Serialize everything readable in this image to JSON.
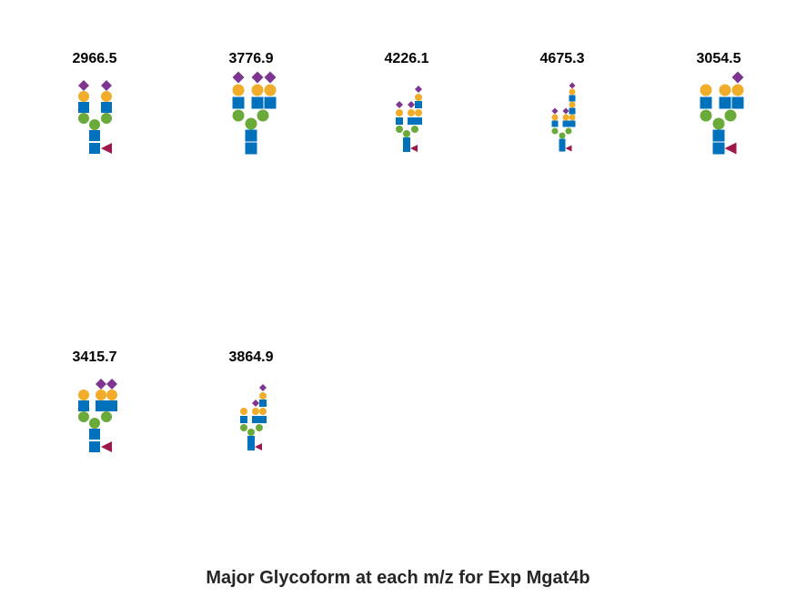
{
  "figure": {
    "caption": "Major Glycoform at each m/z for Exp Mgat4b"
  },
  "legend_colors": {
    "GlcNAc": "#0071bc",
    "Mannose": "#6aaa3a",
    "Galactose": "#f1ad29",
    "NeuAc": "#7e3592",
    "Fucose": "#a0174b"
  },
  "panels": [
    {
      "mz": "2966.5",
      "residues": [
        {
          "type": "square",
          "residue": "GlcNAc"
        },
        {
          "type": "square",
          "residue": "GlcNAc"
        },
        {
          "type": "triangle",
          "residue": "Fucose"
        },
        {
          "type": "circle",
          "residue": "Mannose"
        },
        {
          "type": "circle",
          "residue": "Mannose"
        },
        {
          "type": "circle",
          "residue": "Mannose"
        },
        {
          "type": "square",
          "residue": "GlcNAc"
        },
        {
          "type": "square",
          "residue": "GlcNAc"
        },
        {
          "type": "circle",
          "residue": "Galactose"
        },
        {
          "type": "circle",
          "residue": "Galactose"
        },
        {
          "type": "diamond",
          "residue": "NeuAc"
        },
        {
          "type": "diamond",
          "residue": "NeuAc"
        }
      ]
    },
    {
      "mz": "3776.9",
      "residues": [
        {
          "type": "square",
          "residue": "GlcNAc"
        },
        {
          "type": "square",
          "residue": "GlcNAc"
        },
        {
          "type": "circle",
          "residue": "Mannose"
        },
        {
          "type": "circle",
          "residue": "Mannose"
        },
        {
          "type": "circle",
          "residue": "Mannose"
        },
        {
          "type": "square",
          "residue": "GlcNAc"
        },
        {
          "type": "square",
          "residue": "GlcNAc"
        },
        {
          "type": "square",
          "residue": "GlcNAc"
        },
        {
          "type": "circle",
          "residue": "Galactose"
        },
        {
          "type": "circle",
          "residue": "Galactose"
        },
        {
          "type": "circle",
          "residue": "Galactose"
        },
        {
          "type": "diamond",
          "residue": "NeuAc"
        },
        {
          "type": "diamond",
          "residue": "NeuAc"
        },
        {
          "type": "diamond",
          "residue": "NeuAc"
        }
      ]
    },
    {
      "mz": "4226.1",
      "residues": [
        {
          "type": "square",
          "residue": "GlcNAc"
        },
        {
          "type": "square",
          "residue": "GlcNAc"
        },
        {
          "type": "triangle",
          "residue": "Fucose"
        },
        {
          "type": "circle",
          "residue": "Mannose"
        },
        {
          "type": "circle",
          "residue": "Mannose"
        },
        {
          "type": "circle",
          "residue": "Mannose"
        },
        {
          "type": "square",
          "residue": "GlcNAc"
        },
        {
          "type": "square",
          "residue": "GlcNAc"
        },
        {
          "type": "square",
          "residue": "GlcNAc"
        },
        {
          "type": "circle",
          "residue": "Galactose"
        },
        {
          "type": "circle",
          "residue": "Galactose"
        },
        {
          "type": "circle",
          "residue": "Galactose"
        },
        {
          "type": "square",
          "residue": "GlcNAc"
        },
        {
          "type": "circle",
          "residue": "Galactose"
        },
        {
          "type": "diamond",
          "residue": "NeuAc"
        },
        {
          "type": "diamond",
          "residue": "NeuAc"
        },
        {
          "type": "diamond",
          "residue": "NeuAc"
        }
      ]
    },
    {
      "mz": "4675.3",
      "residues": [
        {
          "type": "square",
          "residue": "GlcNAc"
        },
        {
          "type": "square",
          "residue": "GlcNAc"
        },
        {
          "type": "triangle",
          "residue": "Fucose"
        },
        {
          "type": "circle",
          "residue": "Mannose"
        },
        {
          "type": "circle",
          "residue": "Mannose"
        },
        {
          "type": "circle",
          "residue": "Mannose"
        },
        {
          "type": "square",
          "residue": "GlcNAc"
        },
        {
          "type": "square",
          "residue": "GlcNAc"
        },
        {
          "type": "square",
          "residue": "GlcNAc"
        },
        {
          "type": "circle",
          "residue": "Galactose"
        },
        {
          "type": "circle",
          "residue": "Galactose"
        },
        {
          "type": "circle",
          "residue": "Galactose"
        },
        {
          "type": "square",
          "residue": "GlcNAc"
        },
        {
          "type": "circle",
          "residue": "Galactose"
        },
        {
          "type": "square",
          "residue": "GlcNAc"
        },
        {
          "type": "circle",
          "residue": "Galactose"
        },
        {
          "type": "diamond",
          "residue": "NeuAc"
        },
        {
          "type": "diamond",
          "residue": "NeuAc"
        },
        {
          "type": "diamond",
          "residue": "NeuAc"
        }
      ]
    },
    {
      "mz": "3054.5",
      "residues": [
        {
          "type": "square",
          "residue": "GlcNAc"
        },
        {
          "type": "square",
          "residue": "GlcNAc"
        },
        {
          "type": "triangle",
          "residue": "Fucose"
        },
        {
          "type": "circle",
          "residue": "Mannose"
        },
        {
          "type": "circle",
          "residue": "Mannose"
        },
        {
          "type": "circle",
          "residue": "Mannose"
        },
        {
          "type": "square",
          "residue": "GlcNAc"
        },
        {
          "type": "square",
          "residue": "GlcNAc"
        },
        {
          "type": "square",
          "residue": "GlcNAc"
        },
        {
          "type": "circle",
          "residue": "Galactose"
        },
        {
          "type": "circle",
          "residue": "Galactose"
        },
        {
          "type": "circle",
          "residue": "Galactose"
        },
        {
          "type": "diamond",
          "residue": "NeuAc"
        }
      ]
    },
    {
      "mz": "3415.7",
      "residues": [
        {
          "type": "square",
          "residue": "GlcNAc"
        },
        {
          "type": "square",
          "residue": "GlcNAc"
        },
        {
          "type": "triangle",
          "residue": "Fucose"
        },
        {
          "type": "circle",
          "residue": "Mannose"
        },
        {
          "type": "circle",
          "residue": "Mannose"
        },
        {
          "type": "circle",
          "residue": "Mannose"
        },
        {
          "type": "square",
          "residue": "GlcNAc"
        },
        {
          "type": "square",
          "residue": "GlcNAc"
        },
        {
          "type": "square",
          "residue": "GlcNAc"
        },
        {
          "type": "circle",
          "residue": "Galactose"
        },
        {
          "type": "circle",
          "residue": "Galactose"
        },
        {
          "type": "circle",
          "residue": "Galactose"
        },
        {
          "type": "diamond",
          "residue": "NeuAc"
        },
        {
          "type": "diamond",
          "residue": "NeuAc"
        }
      ]
    },
    {
      "mz": "3864.9",
      "residues": [
        {
          "type": "square",
          "residue": "GlcNAc"
        },
        {
          "type": "square",
          "residue": "GlcNAc"
        },
        {
          "type": "triangle",
          "residue": "Fucose"
        },
        {
          "type": "circle",
          "residue": "Mannose"
        },
        {
          "type": "circle",
          "residue": "Mannose"
        },
        {
          "type": "circle",
          "residue": "Mannose"
        },
        {
          "type": "square",
          "residue": "GlcNAc"
        },
        {
          "type": "square",
          "residue": "GlcNAc"
        },
        {
          "type": "square",
          "residue": "GlcNAc"
        },
        {
          "type": "circle",
          "residue": "Galactose"
        },
        {
          "type": "circle",
          "residue": "Galactose"
        },
        {
          "type": "circle",
          "residue": "Galactose"
        },
        {
          "type": "square",
          "residue": "GlcNAc"
        },
        {
          "type": "circle",
          "residue": "Galactose"
        },
        {
          "type": "diamond",
          "residue": "NeuAc"
        },
        {
          "type": "diamond",
          "residue": "NeuAc"
        }
      ]
    }
  ]
}
